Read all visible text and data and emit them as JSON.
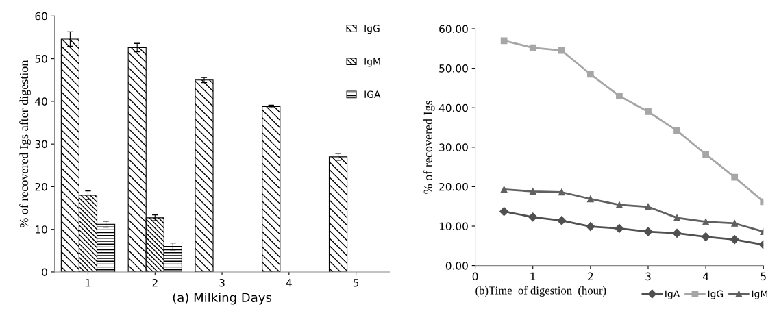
{
  "chart_data": [
    {
      "type": "bar",
      "xlabel": "(a) Milking Days",
      "ylabel": "% of recovered Igs after digestion",
      "categories": [
        "1",
        "2",
        "3",
        "4",
        "5"
      ],
      "series": [
        {
          "name": "IgG",
          "color": "#000000",
          "values": [
            54.6,
            52.6,
            45.0,
            38.8,
            27.0
          ],
          "errors": [
            1.7,
            1.0,
            0.6,
            0.3,
            0.8
          ]
        },
        {
          "name": "IgM",
          "color": "#000000",
          "values": [
            18.0,
            12.7,
            null,
            null,
            null
          ],
          "errors": [
            1.0,
            0.7,
            null,
            null,
            null
          ]
        },
        {
          "name": "IGA",
          "color": "#000000",
          "values": [
            11.2,
            6.0,
            null,
            null,
            null
          ],
          "errors": [
            0.7,
            0.8,
            null,
            null,
            null
          ]
        }
      ],
      "ylim": [
        0,
        60
      ],
      "yticks": [
        0,
        10,
        20,
        30,
        40,
        50,
        60
      ],
      "grid": false,
      "legend": "top right"
    },
    {
      "type": "line",
      "xlabel": "(b)Time  of digestion  (hour)",
      "ylabel": "% of recovered Igs",
      "x": [
        0.5,
        1,
        1.5,
        2,
        2.5,
        3,
        3.5,
        4,
        4.5,
        5
      ],
      "series": [
        {
          "name": "IgA",
          "color": "#505050",
          "marker": "diamond",
          "values": [
            13.7,
            12.3,
            11.4,
            9.9,
            9.4,
            8.6,
            8.2,
            7.3,
            6.6,
            5.3
          ]
        },
        {
          "name": "IgG",
          "color": "#a6a6a6",
          "marker": "square",
          "values": [
            57.0,
            55.2,
            54.5,
            48.5,
            43.0,
            39.0,
            34.2,
            28.2,
            22.4,
            16.2
          ]
        },
        {
          "name": "IgM",
          "color": "#606060",
          "marker": "triangle",
          "values": [
            19.3,
            18.8,
            18.6,
            16.9,
            15.4,
            14.9,
            12.1,
            11.1,
            10.7,
            8.6
          ]
        }
      ],
      "xlim": [
        0,
        5
      ],
      "xticks": [
        0,
        1,
        2,
        3,
        4,
        5
      ],
      "ylim": [
        0,
        60
      ],
      "yticks": [
        {
          "value": 0,
          "label": "0.00"
        },
        {
          "value": 10,
          "label": "10.00"
        },
        {
          "value": 20,
          "label": "20.00"
        },
        {
          "value": 30,
          "label": "30.00"
        },
        {
          "value": 40,
          "label": "40.00"
        },
        {
          "value": 50,
          "label": "50.00"
        },
        {
          "value": 60,
          "label": "60.00"
        }
      ],
      "grid": false,
      "legend": "bottom right"
    }
  ]
}
